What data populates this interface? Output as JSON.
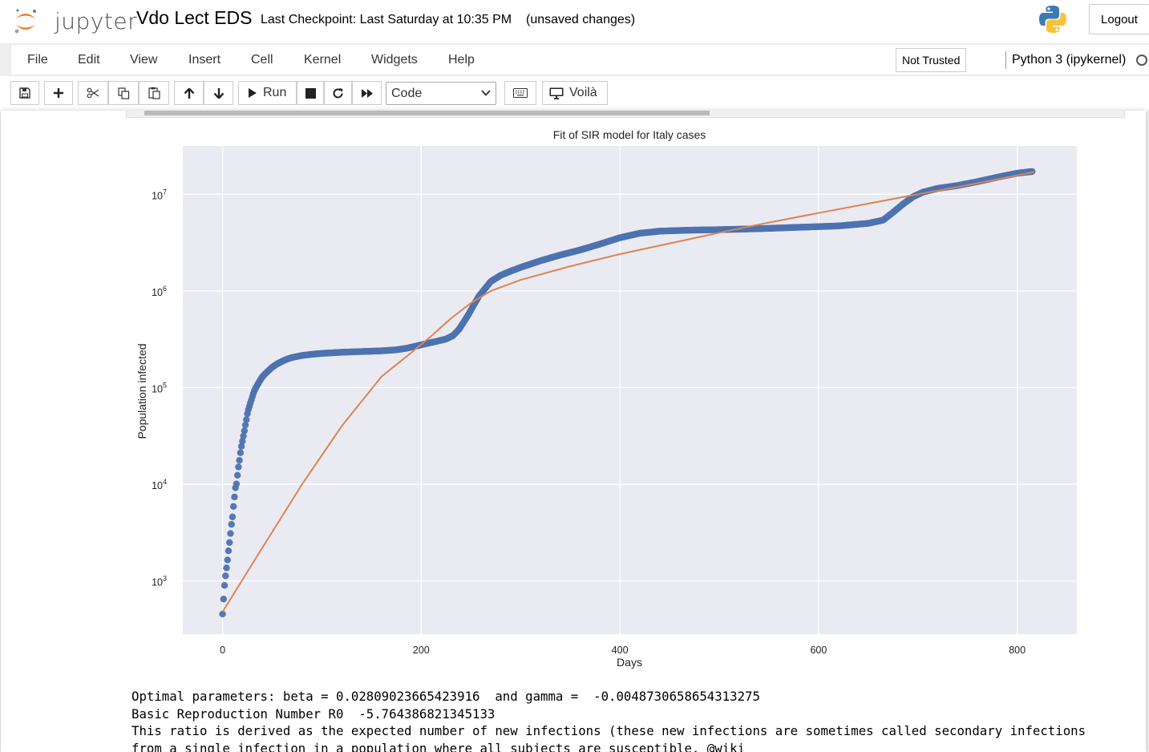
{
  "header": {
    "logo_text": "jupyter",
    "notebook_title": "Vdo Lect EDS",
    "checkpoint": "Last Checkpoint: Last Saturday at 10:35 PM",
    "autosave_status": "(unsaved changes)",
    "logout_label": "Logout"
  },
  "menubar": {
    "items": [
      "File",
      "Edit",
      "View",
      "Insert",
      "Cell",
      "Kernel",
      "Widgets",
      "Help"
    ],
    "trusted_label": "Not Trusted",
    "kernel_name": "Python 3 (ipykernel)"
  },
  "toolbar": {
    "run_label": "Run",
    "cell_type": "Code",
    "voila_label": "Voilà"
  },
  "colors": {
    "accent": "#f37626",
    "scatter": "#4c72b0",
    "fit_line": "#dd8452",
    "plot_bg": "#eaeaf2"
  },
  "chart_data": {
    "type": "scatter",
    "title": "Fit of SIR model for Italy cases",
    "xlabel": "Days",
    "ylabel": "Population infected",
    "xlim": [
      -40,
      860
    ],
    "ylim_log10": [
      2.45,
      7.5
    ],
    "y_scale": "log",
    "x_ticks": [
      0,
      200,
      400,
      600,
      800
    ],
    "y_ticks": [
      "10^3",
      "10^4",
      "10^5",
      "10^6",
      "10^7"
    ],
    "grid": true,
    "series": [
      {
        "name": "",
        "style": "scatter",
        "points": [
          [
            0,
            455
          ],
          [
            1,
            650
          ],
          [
            2,
            900
          ],
          [
            3,
            1130
          ],
          [
            5,
            1650
          ],
          [
            6,
            2050
          ],
          [
            7,
            2500
          ],
          [
            8,
            3100
          ],
          [
            9,
            3850
          ],
          [
            10,
            4600
          ],
          [
            11,
            5900
          ],
          [
            12,
            7400
          ],
          [
            13,
            9200
          ],
          [
            14,
            10100
          ],
          [
            15,
            12400
          ],
          [
            16,
            15100
          ],
          [
            17,
            17700
          ],
          [
            18,
            21200
          ],
          [
            19,
            24700
          ],
          [
            20,
            27900
          ],
          [
            21,
            31500
          ],
          [
            22,
            35700
          ],
          [
            23,
            41000
          ],
          [
            24,
            46600
          ],
          [
            25,
            53600
          ],
          [
            26,
            59100
          ],
          [
            27,
            63900
          ],
          [
            28,
            69200
          ],
          [
            29,
            74400
          ],
          [
            30,
            80500
          ],
          [
            31,
            86500
          ],
          [
            32,
            92500
          ],
          [
            34,
            101700
          ],
          [
            36,
            110600
          ],
          [
            38,
            119800
          ],
          [
            40,
            128900
          ],
          [
            43,
            139400
          ],
          [
            46,
            149100
          ],
          [
            50,
            162500
          ],
          [
            55,
            176000
          ],
          [
            60,
            187000
          ],
          [
            65,
            197000
          ],
          [
            70,
            205000
          ],
          [
            80,
            215000
          ],
          [
            90,
            221000
          ],
          [
            100,
            226000
          ],
          [
            120,
            232000
          ],
          [
            140,
            236000
          ],
          [
            160,
            240000
          ],
          [
            175,
            246000
          ],
          [
            185,
            255000
          ],
          [
            195,
            269000
          ],
          [
            205,
            285000
          ],
          [
            215,
            300000
          ],
          [
            225,
            318000
          ],
          [
            232,
            345000
          ],
          [
            238,
            400000
          ],
          [
            243,
            480000
          ],
          [
            248,
            580000
          ],
          [
            253,
            720000
          ],
          [
            258,
            880000
          ],
          [
            264,
            1050000
          ],
          [
            270,
            1250000
          ],
          [
            280,
            1450000
          ],
          [
            290,
            1600000
          ],
          [
            300,
            1750000
          ],
          [
            320,
            2050000
          ],
          [
            340,
            2350000
          ],
          [
            360,
            2650000
          ],
          [
            380,
            3050000
          ],
          [
            400,
            3550000
          ],
          [
            420,
            3950000
          ],
          [
            440,
            4150000
          ],
          [
            470,
            4250000
          ],
          [
            500,
            4300000
          ],
          [
            540,
            4400000
          ],
          [
            580,
            4550000
          ],
          [
            620,
            4700000
          ],
          [
            650,
            5000000
          ],
          [
            665,
            5400000
          ],
          [
            675,
            6500000
          ],
          [
            685,
            7900000
          ],
          [
            695,
            9400000
          ],
          [
            705,
            10500000
          ],
          [
            720,
            11500000
          ],
          [
            740,
            12300000
          ],
          [
            760,
            13500000
          ],
          [
            780,
            15000000
          ],
          [
            800,
            16500000
          ],
          [
            815,
            17200000
          ]
        ]
      },
      {
        "name": "",
        "style": "line",
        "points": [
          [
            0,
            480
          ],
          [
            40,
            2200
          ],
          [
            80,
            10000
          ],
          [
            120,
            40000
          ],
          [
            160,
            130000
          ],
          [
            190,
            230000
          ],
          [
            210,
            340000
          ],
          [
            230,
            520000
          ],
          [
            250,
            750000
          ],
          [
            270,
            1000000
          ],
          [
            300,
            1300000
          ],
          [
            350,
            1800000
          ],
          [
            400,
            2400000
          ],
          [
            450,
            3100000
          ],
          [
            500,
            4000000
          ],
          [
            550,
            5100000
          ],
          [
            600,
            6400000
          ],
          [
            650,
            8000000
          ],
          [
            700,
            10000000
          ],
          [
            750,
            12400000
          ],
          [
            817,
            17000000
          ]
        ]
      }
    ]
  },
  "output": {
    "line1": "Optimal parameters: beta = 0.02809023665423916  and gamma =  -0.0048730658654313275",
    "line2": "Basic Reproduction Number R0  -5.764386821345133",
    "line3": "This ratio is derived as the expected number of new infections (these new infections are sometimes called secondary infections",
    "line4": "from a single infection in a population where all subjects are susceptible. @wiki"
  }
}
